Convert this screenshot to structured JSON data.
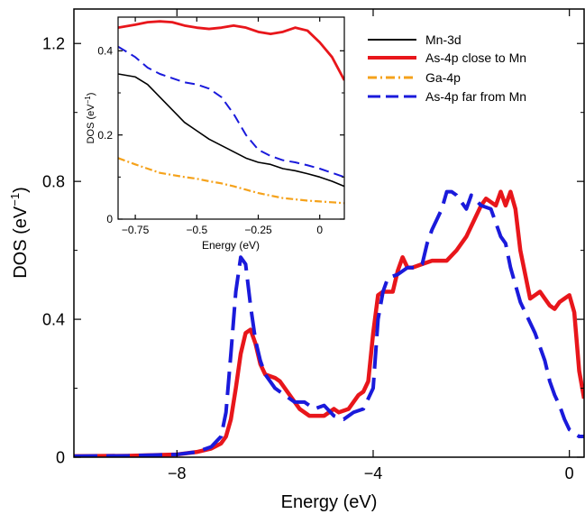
{
  "chart_data": [
    {
      "type": "line",
      "xlabel": "Energy (eV)",
      "ylabel": "DOS (eV",
      "ylabel_sup": "−1",
      "ylabel_close": ")",
      "xlim": [
        -10.1,
        0.3
      ],
      "ylim": [
        0,
        1.3
      ],
      "xticks": [
        -8,
        -4,
        0
      ],
      "xtick_labels": [
        "−8",
        "−4",
        "0"
      ],
      "yticks": [
        0,
        0.4,
        0.8,
        1.2
      ],
      "ytick_labels": [
        "0",
        "0.4",
        "0.8",
        "1.2"
      ],
      "grid": false,
      "legend_placement": "top-right",
      "series": [
        {
          "name": "As-4p close to Mn",
          "color": "#e8161b",
          "dash": "solid",
          "x": [
            -10.1,
            -9,
            -8,
            -7.6,
            -7.3,
            -7.1,
            -7.0,
            -6.9,
            -6.8,
            -6.7,
            -6.6,
            -6.5,
            -6.4,
            -6.3,
            -6.2,
            -6.0,
            -5.9,
            -5.7,
            -5.5,
            -5.3,
            -5.0,
            -4.8,
            -4.7,
            -4.5,
            -4.4,
            -4.3,
            -4.2,
            -4.1,
            -4.0,
            -3.9,
            -3.8,
            -3.6,
            -3.5,
            -3.4,
            -3.3,
            -3.2,
            -3.0,
            -2.8,
            -2.5,
            -2.3,
            -2.1,
            -1.9,
            -1.8,
            -1.7,
            -1.6,
            -1.5,
            -1.4,
            -1.3,
            -1.2,
            -1.1,
            -1.0,
            -0.9,
            -0.8,
            -0.7,
            -0.6,
            -0.5,
            -0.4,
            -0.3,
            -0.2,
            -0.1,
            0.0,
            0.1,
            0.2,
            0.3
          ],
          "y": [
            0.003,
            0.004,
            0.008,
            0.015,
            0.025,
            0.04,
            0.06,
            0.11,
            0.2,
            0.3,
            0.36,
            0.37,
            0.33,
            0.27,
            0.24,
            0.23,
            0.22,
            0.18,
            0.14,
            0.12,
            0.12,
            0.14,
            0.13,
            0.14,
            0.16,
            0.18,
            0.19,
            0.22,
            0.36,
            0.47,
            0.48,
            0.48,
            0.54,
            0.58,
            0.55,
            0.55,
            0.56,
            0.57,
            0.57,
            0.6,
            0.64,
            0.7,
            0.73,
            0.75,
            0.74,
            0.73,
            0.77,
            0.73,
            0.77,
            0.72,
            0.6,
            0.53,
            0.46,
            0.47,
            0.48,
            0.46,
            0.44,
            0.43,
            0.45,
            0.46,
            0.47,
            0.42,
            0.25,
            0.17
          ]
        },
        {
          "name": "As-4p far from Mn",
          "color": "#1a1adb",
          "dash": "long-dash",
          "x": [
            -10.1,
            -9,
            -8,
            -7.6,
            -7.3,
            -7.1,
            -7.0,
            -6.9,
            -6.8,
            -6.7,
            -6.6,
            -6.5,
            -6.4,
            -6.3,
            -6.2,
            -6.0,
            -5.8,
            -5.6,
            -5.4,
            -5.2,
            -5.0,
            -4.8,
            -4.6,
            -4.4,
            -4.2,
            -4.0,
            -3.9,
            -3.8,
            -3.7,
            -3.5,
            -3.3,
            -3.1,
            -3.0,
            -2.9,
            -2.8,
            -2.7,
            -2.6,
            -2.5,
            -2.4,
            -2.3,
            -2.2,
            -2.1,
            -2.0,
            -1.8,
            -1.6,
            -1.4,
            -1.3,
            -1.2,
            -1.1,
            -1.0,
            -0.9,
            -0.8,
            -0.7,
            -0.6,
            -0.5,
            -0.4,
            -0.3,
            -0.2,
            -0.1,
            0.0,
            0.1,
            0.2,
            0.3
          ],
          "y": [
            0.003,
            0.004,
            0.008,
            0.015,
            0.03,
            0.06,
            0.13,
            0.3,
            0.48,
            0.58,
            0.56,
            0.44,
            0.34,
            0.28,
            0.24,
            0.2,
            0.18,
            0.16,
            0.16,
            0.14,
            0.15,
            0.12,
            0.11,
            0.13,
            0.14,
            0.2,
            0.4,
            0.48,
            0.52,
            0.53,
            0.55,
            0.55,
            0.56,
            0.62,
            0.66,
            0.69,
            0.72,
            0.77,
            0.77,
            0.76,
            0.74,
            0.72,
            0.76,
            0.73,
            0.72,
            0.64,
            0.62,
            0.55,
            0.5,
            0.45,
            0.42,
            0.39,
            0.36,
            0.32,
            0.28,
            0.22,
            0.18,
            0.15,
            0.11,
            0.08,
            0.07,
            0.06,
            0.06
          ]
        }
      ]
    },
    {
      "type": "line",
      "xlabel": "Energy (eV)",
      "ylabel": "DOS (eV",
      "ylabel_sup": "−1",
      "ylabel_close": ")",
      "xlim": [
        -0.82,
        0.1
      ],
      "ylim": [
        0,
        0.48
      ],
      "xticks": [
        -0.75,
        -0.5,
        -0.25,
        0
      ],
      "xtick_labels": [
        "−0.75",
        "−0.5",
        "−0.25",
        "0"
      ],
      "yticks": [
        0,
        0.2,
        0.4
      ],
      "ytick_labels": [
        "0",
        "0.2",
        "0.4"
      ],
      "grid": false,
      "series": [
        {
          "name": "Mn-3d",
          "color": "#000000",
          "dash": "solid",
          "x": [
            -0.82,
            -0.75,
            -0.7,
            -0.65,
            -0.6,
            -0.55,
            -0.5,
            -0.45,
            -0.4,
            -0.35,
            -0.3,
            -0.25,
            -0.2,
            -0.15,
            -0.1,
            -0.05,
            0.0,
            0.05,
            0.1
          ],
          "y": [
            0.345,
            0.338,
            0.32,
            0.29,
            0.26,
            0.23,
            0.21,
            0.19,
            0.175,
            0.16,
            0.145,
            0.135,
            0.13,
            0.12,
            0.115,
            0.108,
            0.1,
            0.09,
            0.078
          ]
        },
        {
          "name": "As-4p close to Mn",
          "color": "#e8161b",
          "dash": "solid",
          "x": [
            -0.82,
            -0.75,
            -0.7,
            -0.65,
            -0.6,
            -0.55,
            -0.5,
            -0.45,
            -0.4,
            -0.35,
            -0.3,
            -0.25,
            -0.2,
            -0.15,
            -0.1,
            -0.05,
            0.0,
            0.05,
            0.1
          ],
          "y": [
            0.455,
            0.462,
            0.468,
            0.47,
            0.468,
            0.46,
            0.455,
            0.452,
            0.455,
            0.46,
            0.455,
            0.445,
            0.44,
            0.445,
            0.455,
            0.448,
            0.42,
            0.385,
            0.33
          ]
        },
        {
          "name": "Ga-4p",
          "color": "#f5a21b",
          "dash": "dash-dot",
          "x": [
            -0.82,
            -0.75,
            -0.7,
            -0.65,
            -0.6,
            -0.55,
            -0.5,
            -0.45,
            -0.4,
            -0.35,
            -0.3,
            -0.25,
            -0.2,
            -0.15,
            -0.1,
            -0.05,
            0.0,
            0.05,
            0.1
          ],
          "y": [
            0.145,
            0.13,
            0.12,
            0.11,
            0.105,
            0.1,
            0.096,
            0.09,
            0.085,
            0.078,
            0.07,
            0.062,
            0.056,
            0.05,
            0.047,
            0.044,
            0.042,
            0.04,
            0.038
          ]
        },
        {
          "name": "As-4p far from Mn",
          "color": "#1a1adb",
          "dash": "dashed",
          "x": [
            -0.82,
            -0.75,
            -0.7,
            -0.65,
            -0.6,
            -0.55,
            -0.5,
            -0.45,
            -0.4,
            -0.35,
            -0.3,
            -0.25,
            -0.2,
            -0.15,
            -0.1,
            -0.05,
            0.0,
            0.05,
            0.1
          ],
          "y": [
            0.41,
            0.385,
            0.36,
            0.345,
            0.335,
            0.325,
            0.32,
            0.31,
            0.29,
            0.25,
            0.2,
            0.165,
            0.15,
            0.14,
            0.135,
            0.128,
            0.12,
            0.11,
            0.1
          ]
        }
      ]
    }
  ]
}
